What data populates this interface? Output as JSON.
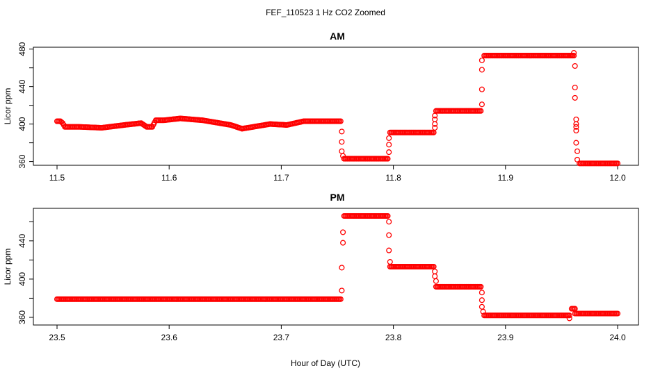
{
  "figure": {
    "title": "FEF_110523  1 Hz CO2 Zoomed",
    "xlabel": "Hour of Day (UTC)"
  },
  "chart_data": [
    {
      "type": "scatter",
      "title": "AM",
      "xlabel": "",
      "ylabel": "Licor ppm",
      "xlim": [
        11.5,
        12.0
      ],
      "ylim": [
        356,
        482
      ],
      "x_ticks": [
        "11.5",
        "11.6",
        "11.7",
        "11.8",
        "11.9",
        "12.0"
      ],
      "y_ticks": [
        "360",
        "400",
        "440",
        "480"
      ],
      "y_minor_ticks": [
        380,
        420,
        460
      ],
      "marker_color": "#ff0000",
      "series": [
        {
          "segments": [
            {
              "x": [
                11.5,
                11.503,
                11.505,
                11.507,
                11.52,
                11.54,
                11.56,
                11.575,
                11.58,
                11.585,
                11.588,
                11.595,
                11.61,
                11.62,
                11.63,
                11.64,
                11.655,
                11.665,
                11.675,
                11.69,
                11.705,
                11.72,
                11.74,
                11.753
              ],
              "y": [
                403,
                403,
                401,
                397,
                397,
                396,
                399,
                401,
                397,
                397,
                404,
                404,
                406,
                405,
                404,
                402,
                399,
                395,
                397,
                400,
                399,
                403,
                403,
                403
              ]
            },
            {
              "x": [
                11.756,
                11.795
              ],
              "y": [
                363,
                363
              ]
            },
            {
              "x": [
                11.797,
                11.836
              ],
              "y": [
                391,
                391
              ]
            },
            {
              "x": [
                11.838,
                11.878
              ],
              "y": [
                414,
                414
              ]
            },
            {
              "x": [
                11.881,
                11.961
              ],
              "y": [
                473,
                473
              ]
            },
            {
              "x": [
                11.966,
                12.0
              ],
              "y": [
                358,
                358
              ]
            }
          ],
          "transition_points": [
            {
              "x": 11.754,
              "y": 392
            },
            {
              "x": 11.754,
              "y": 381
            },
            {
              "x": 11.754,
              "y": 371
            },
            {
              "x": 11.755,
              "y": 366
            },
            {
              "x": 11.796,
              "y": 370
            },
            {
              "x": 11.796,
              "y": 378
            },
            {
              "x": 11.796,
              "y": 385
            },
            {
              "x": 11.837,
              "y": 396
            },
            {
              "x": 11.837,
              "y": 400
            },
            {
              "x": 11.837,
              "y": 405
            },
            {
              "x": 11.837,
              "y": 409
            },
            {
              "x": 11.879,
              "y": 421
            },
            {
              "x": 11.879,
              "y": 437
            },
            {
              "x": 11.879,
              "y": 458
            },
            {
              "x": 11.879,
              "y": 468
            },
            {
              "x": 11.961,
              "y": 476
            },
            {
              "x": 11.962,
              "y": 462
            },
            {
              "x": 11.962,
              "y": 439
            },
            {
              "x": 11.962,
              "y": 428
            },
            {
              "x": 11.963,
              "y": 405
            },
            {
              "x": 11.963,
              "y": 400
            },
            {
              "x": 11.963,
              "y": 397
            },
            {
              "x": 11.963,
              "y": 393
            },
            {
              "x": 11.963,
              "y": 380
            },
            {
              "x": 11.964,
              "y": 371
            },
            {
              "x": 11.964,
              "y": 362
            }
          ]
        }
      ]
    },
    {
      "type": "scatter",
      "title": "PM",
      "xlabel": "Hour of Day (UTC)",
      "ylabel": "Licor ppm",
      "xlim": [
        23.5,
        24.0
      ],
      "ylim": [
        352,
        474
      ],
      "x_ticks": [
        "23.5",
        "23.6",
        "23.7",
        "23.8",
        "23.9",
        "24.0"
      ],
      "y_ticks": [
        "360",
        "400",
        "440"
      ],
      "y_minor_ticks": [
        380,
        420,
        460
      ],
      "marker_color": "#ff0000",
      "series": [
        {
          "segments": [
            {
              "x": [
                23.5,
                23.753
              ],
              "y": [
                379,
                379
              ]
            },
            {
              "x": [
                23.756,
                23.795
              ],
              "y": [
                466,
                466
              ]
            },
            {
              "x": [
                23.797,
                23.836
              ],
              "y": [
                413,
                413
              ]
            },
            {
              "x": [
                23.838,
                23.878
              ],
              "y": [
                392,
                392
              ]
            },
            {
              "x": [
                23.881,
                23.957
              ],
              "y": [
                362,
                362
              ]
            },
            {
              "x": [
                23.959,
                23.962
              ],
              "y": [
                369,
                369
              ]
            },
            {
              "x": [
                23.962,
                24.0
              ],
              "y": [
                364,
                364
              ]
            }
          ],
          "transition_points": [
            {
              "x": 23.754,
              "y": 388
            },
            {
              "x": 23.754,
              "y": 412
            },
            {
              "x": 23.755,
              "y": 438
            },
            {
              "x": 23.755,
              "y": 449
            },
            {
              "x": 23.796,
              "y": 460
            },
            {
              "x": 23.796,
              "y": 446
            },
            {
              "x": 23.796,
              "y": 430
            },
            {
              "x": 23.797,
              "y": 418
            },
            {
              "x": 23.837,
              "y": 408
            },
            {
              "x": 23.837,
              "y": 403
            },
            {
              "x": 23.838,
              "y": 398
            },
            {
              "x": 23.879,
              "y": 386
            },
            {
              "x": 23.879,
              "y": 378
            },
            {
              "x": 23.879,
              "y": 371
            },
            {
              "x": 23.88,
              "y": 366
            },
            {
              "x": 23.957,
              "y": 359
            }
          ]
        }
      ]
    }
  ]
}
